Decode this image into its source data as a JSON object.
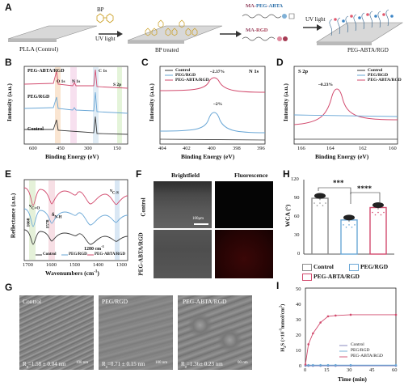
{
  "A": {
    "letter": "A",
    "step1": "PLLA (Control)",
    "bp_small": "BP",
    "uv1": "UV light",
    "step2": "BP treated",
    "ma_peg_abta_prefix": "MA-",
    "ma_peg_abta_peg": "PEG",
    "ma_peg_abta_sep": "-",
    "ma_peg_abta_abta": "ABTA",
    "ma_rgd_prefix": "MA-",
    "ma_rgd_rgd": "RGD",
    "uv2": "UV light",
    "step3": "PEG-ABTA/RGD"
  },
  "B": {
    "letter": "B",
    "lines": [
      "PEG-ABTA/RGD",
      "PEG/RGD",
      "Control"
    ],
    "peaks": [
      "O 1s",
      "N 1s",
      "C 1s",
      "S 2p"
    ],
    "ylabel": "Intensity (a.u.)",
    "xlabel": "Binding Energy (eV)",
    "xticks": [
      "600",
      "450",
      "300",
      "150"
    ]
  },
  "C": {
    "letter": "C",
    "legend": [
      "Control",
      "PEG/RGD",
      "PEG-ABTA/RGD"
    ],
    "tag": "N 1s",
    "ann1": "~2.37%",
    "ann2": "~2%",
    "ylabel": "Intensity (a.u.)",
    "xlabel": "Binding Energy (eV)",
    "xticks": [
      "404",
      "402",
      "400",
      "398",
      "396"
    ]
  },
  "D": {
    "letter": "D",
    "legend": [
      "Control",
      "PEG/RGD",
      "PEG-ABTA/RGD"
    ],
    "tag": "S 2p",
    "ann": "~0.23%",
    "ylabel": "Intensity (a.u.)",
    "xlabel": "Binding Energy (eV)",
    "xticks": [
      "166",
      "164",
      "162",
      "160"
    ]
  },
  "E": {
    "letter": "E",
    "ylabel": "Reflectance (a.u.)",
    "xlabel": "Wavenumbers (cm",
    "xlabel_sup": "-1",
    "xlabel_end": ")",
    "band_co": "ν",
    "band_co_sub": "C=O",
    "band_nh": "δ",
    "band_nh_sub": "N-H",
    "band_cs": "ν",
    "band_cs_sub": "C-S",
    "v1": "1660",
    "v2": "1578",
    "v3": "1280 cm",
    "v3_sup": "-1",
    "legend": [
      "Control",
      "PEG/RGD",
      "PEG-ABTA/RGD"
    ],
    "xticks": [
      "1700",
      "1600",
      "1500",
      "1400",
      "1300"
    ]
  },
  "F": {
    "letter": "F",
    "col1": "Brightfield",
    "col2": "Fluorescence",
    "row1": "Control",
    "row2": "PEG-ABTA/RGD",
    "scale": "100μm"
  },
  "G": {
    "letter": "G",
    "panels": [
      {
        "title": "Control",
        "ra_main": "R",
        "ra_sub": "a",
        "ra_val": "=1.58 ± 0.04 nm",
        "scale": "100 nm"
      },
      {
        "title": "PEG/RGD",
        "ra_main": "R",
        "ra_sub": "a",
        "ra_val": "=0.71 ± 0.15 nm",
        "scale": "100 nm"
      },
      {
        "title": "PEG-ABTA/RGD",
        "ra_main": "R",
        "ra_sub": "a",
        "ra_val": "=1.36± 0.23 nm",
        "scale": "00 nm"
      }
    ]
  },
  "H": {
    "letter": "H",
    "ylabel": "WCA (°)",
    "sig1": "***",
    "sig2": "****",
    "legend": [
      "Control",
      "PEG/RGD",
      "PEG-ABTA/RGD"
    ],
    "yticks": [
      "0",
      "30",
      "60",
      "90",
      "120"
    ]
  },
  "I": {
    "letter": "I",
    "ylabel": "H",
    "ylabel_rest": "S (×10",
    "ylabel_sup": "-3",
    "ylabel_end": "mmol/cm",
    "ylabel_sup2": "2",
    "ylabel_close": ")",
    "xlabel": "Time (min)",
    "legend": [
      "Control",
      "PEG/RGD",
      "PEG-ABTA/RGD"
    ],
    "xticks": [
      "0",
      "15",
      "30",
      "45",
      "60"
    ],
    "yticks": [
      "0",
      "10",
      "20",
      "30",
      "40",
      "50"
    ]
  },
  "colors": {
    "control": "#3a3a3a",
    "peg_rgd": "#6aa7d6",
    "peg_abta": "#d24b6e",
    "gray_bar": "#8a8a8a"
  },
  "chart_data": [
    {
      "type": "line",
      "panel": "B",
      "xlabel": "Binding Energy (eV)",
      "ylabel": "Intensity (a.u.)",
      "series": [
        {
          "name": "PEG-ABTA/RGD"
        },
        {
          "name": "PEG/RGD"
        },
        {
          "name": "Control"
        }
      ],
      "xlim": [
        700,
        130
      ]
    },
    {
      "type": "line",
      "panel": "C",
      "xlabel": "Binding Energy (eV)",
      "ylabel": "Intensity (a.u.)",
      "xlim": [
        404.5,
        396
      ],
      "series": [
        {
          "name": "Control",
          "peak_x": null
        },
        {
          "name": "PEG/RGD",
          "peak_x": 400.0,
          "annotation": "~2%"
        },
        {
          "name": "PEG-ABTA/RGD",
          "peak_x": 400.0,
          "annotation": "~2.37%"
        }
      ]
    },
    {
      "type": "line",
      "panel": "D",
      "xlabel": "Binding Energy (eV)",
      "ylabel": "Intensity (a.u.)",
      "xlim": [
        167,
        160
      ],
      "series": [
        {
          "name": "Control"
        },
        {
          "name": "PEG/RGD"
        },
        {
          "name": "PEG-ABTA/RGD",
          "peak_x": 164.0,
          "annotation": "~0.23%"
        }
      ]
    },
    {
      "type": "line",
      "panel": "E",
      "xlabel": "Wavenumbers (cm-1)",
      "ylabel": "Reflectance (a.u.)",
      "xlim": [
        1700,
        1270
      ],
      "series": [
        {
          "name": "Control"
        },
        {
          "name": "PEG/RGD"
        },
        {
          "name": "PEG-ABTA/RGD"
        }
      ]
    },
    {
      "type": "bar",
      "panel": "H",
      "ylabel": "WCA (°)",
      "categories": [
        "Control",
        "PEG/RGD",
        "PEG-ABTA/RGD"
      ],
      "values": [
        90,
        55,
        75
      ],
      "errors": [
        3,
        3,
        3
      ],
      "ylim": [
        0,
        120
      ]
    },
    {
      "type": "line",
      "panel": "I",
      "xlabel": "Time (min)",
      "xlim": [
        0,
        60
      ],
      "ylim": [
        0,
        50
      ],
      "series": [
        {
          "name": "Control",
          "x": [
            0,
            2,
            5,
            10,
            15,
            20,
            30,
            60
          ],
          "values": [
            0,
            0,
            0,
            0,
            0,
            0,
            0,
            0
          ]
        },
        {
          "name": "PEG/RGD",
          "x": [
            0,
            2,
            5,
            10,
            15,
            20,
            30,
            60
          ],
          "values": [
            0,
            0,
            0,
            0,
            0,
            0,
            0,
            0
          ]
        },
        {
          "name": "PEG-ABTA/RGD",
          "x": [
            0,
            2,
            5,
            10,
            15,
            20,
            30,
            60
          ],
          "values": [
            0,
            13,
            20,
            27,
            31,
            31.5,
            32,
            32
          ]
        }
      ]
    }
  ]
}
